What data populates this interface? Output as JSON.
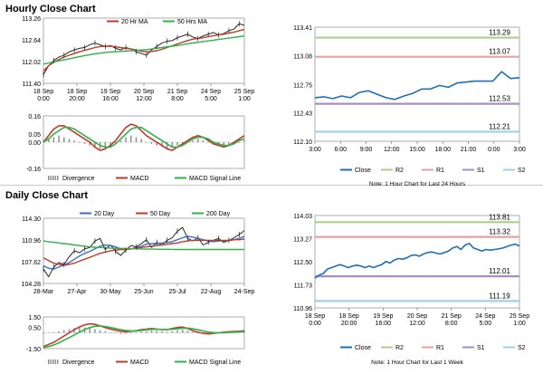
{
  "sections": {
    "hourly_title": "Hourly Close Chart",
    "daily_title": "Daily Close Chart"
  },
  "colors": {
    "price": "#111111",
    "ma_short": "#c0392b",
    "ma_long": "#2db34a",
    "ma_mid": "#3b6fc4",
    "close": "#1f6fb2",
    "r2": "#a8d08d",
    "r1": "#e8a0a0",
    "s1": "#a78fc0",
    "s2": "#9dd0e8",
    "divergence": "#888888",
    "macd": "#c0392b",
    "signal": "#2db34a"
  },
  "chart_data": [
    {
      "id": "hourly_price",
      "type": "line",
      "ylim": [
        111.4,
        113.26
      ],
      "yticks": [
        "113.26",
        "112.64",
        "112.02",
        "111.40"
      ],
      "xticks": [
        "18 Sep\n0:00",
        "18 Sep\n20:00",
        "19 Sep\n16:00",
        "20 Sep\n12:00",
        "21 Sep\n8:00",
        "24 Sep\n5:00",
        "25 Sep\n1:00"
      ],
      "legend": [
        "20 Hr MA",
        "50 Hrs MA"
      ],
      "series": [
        {
          "name": "Price",
          "values": [
            111.65,
            111.9,
            112.05,
            112.15,
            112.2,
            112.3,
            112.35,
            112.4,
            112.42,
            112.5,
            112.55,
            112.5,
            112.45,
            112.48,
            112.4,
            112.35,
            112.42,
            112.38,
            112.3,
            112.25,
            112.2,
            112.35,
            112.45,
            112.55,
            112.6,
            112.62,
            112.7,
            112.75,
            112.8,
            112.72,
            112.68,
            112.75,
            112.8,
            112.85,
            112.78,
            112.82,
            112.9,
            112.95,
            113.1,
            113.05
          ]
        },
        {
          "name": "20 Hr MA",
          "values": [
            111.75,
            111.9,
            112.0,
            112.08,
            112.15,
            112.2,
            112.25,
            112.3,
            112.34,
            112.38,
            112.42,
            112.45,
            112.46,
            112.46,
            112.44,
            112.42,
            112.4,
            112.38,
            112.35,
            112.32,
            112.3,
            112.31,
            112.33,
            112.37,
            112.42,
            112.47,
            112.52,
            112.57,
            112.62,
            112.66,
            112.68,
            112.7,
            112.73,
            112.76,
            112.78,
            112.8,
            112.83,
            112.86,
            112.9,
            112.94
          ]
        },
        {
          "name": "50 Hrs MA",
          "values": [
            111.95,
            111.98,
            112.01,
            112.04,
            112.07,
            112.1,
            112.13,
            112.16,
            112.19,
            112.22,
            112.24,
            112.26,
            112.28,
            112.29,
            112.3,
            112.31,
            112.32,
            112.33,
            112.34,
            112.35,
            112.36,
            112.38,
            112.4,
            112.42,
            112.44,
            112.46,
            112.48,
            112.5,
            112.53,
            112.55,
            112.57,
            112.59,
            112.61,
            112.63,
            112.65,
            112.67,
            112.69,
            112.71,
            112.73,
            112.75
          ]
        }
      ]
    },
    {
      "id": "hourly_macd",
      "type": "line",
      "ylim": [
        -0.16,
        0.16
      ],
      "yticks": [
        "0.16",
        "0.05",
        "0.00",
        "-0.16"
      ],
      "legend": [
        "Divergence",
        "MACD",
        "MACD Signal Line"
      ],
      "divergence": [
        0.01,
        0.02,
        0.03,
        0.04,
        0.03,
        0.02,
        0.01,
        0.0,
        -0.01,
        -0.02,
        -0.03,
        -0.04,
        -0.03,
        -0.02,
        -0.01,
        0.01,
        0.03,
        0.04,
        0.03,
        0.02,
        0.0,
        -0.01,
        -0.02,
        -0.03,
        -0.04,
        -0.03,
        -0.02,
        -0.01,
        0.0,
        0.01,
        0.02,
        0.01,
        0.0,
        -0.01,
        -0.02,
        -0.03,
        -0.02,
        -0.01,
        0.0,
        0.01
      ],
      "series": [
        {
          "name": "MACD",
          "values": [
            0.0,
            0.04,
            0.08,
            0.1,
            0.1,
            0.08,
            0.06,
            0.04,
            0.02,
            0.0,
            -0.03,
            -0.05,
            -0.04,
            -0.02,
            0.01,
            0.05,
            0.09,
            0.11,
            0.1,
            0.07,
            0.04,
            0.02,
            0.0,
            -0.02,
            -0.04,
            -0.05,
            -0.03,
            -0.01,
            0.01,
            0.03,
            0.04,
            0.03,
            0.01,
            -0.01,
            -0.02,
            -0.03,
            -0.02,
            0.0,
            0.02,
            0.04
          ]
        },
        {
          "name": "MACD Signal Line",
          "values": [
            0.0,
            0.02,
            0.05,
            0.07,
            0.09,
            0.09,
            0.08,
            0.06,
            0.04,
            0.02,
            0.0,
            -0.02,
            -0.03,
            -0.03,
            -0.01,
            0.02,
            0.05,
            0.08,
            0.09,
            0.09,
            0.07,
            0.05,
            0.03,
            0.01,
            -0.01,
            -0.03,
            -0.03,
            -0.02,
            0.0,
            0.02,
            0.03,
            0.03,
            0.02,
            0.0,
            -0.01,
            -0.02,
            -0.02,
            -0.01,
            0.01,
            0.02
          ]
        }
      ]
    },
    {
      "id": "hourly_levels",
      "type": "line",
      "ylim": [
        112.1,
        113.41
      ],
      "yticks": [
        "113.41",
        "113.08",
        "112.75",
        "112.43",
        "112.10"
      ],
      "xticks": [
        "3:00",
        "6:00",
        "9:00",
        "12:00",
        "15:00",
        "18:00",
        "21:00",
        "0:00",
        "3:00"
      ],
      "levels": [
        {
          "name": "R2",
          "value": 113.29,
          "label": "113.29"
        },
        {
          "name": "R1",
          "value": 113.07,
          "label": "113.07"
        },
        {
          "name": "S1",
          "value": 112.53,
          "label": "112.53"
        },
        {
          "name": "S2",
          "value": 112.21,
          "label": "112.21"
        }
      ],
      "series": [
        {
          "name": "Close",
          "values": [
            112.6,
            112.61,
            112.59,
            112.62,
            112.6,
            112.66,
            112.68,
            112.64,
            112.6,
            112.58,
            112.62,
            112.65,
            112.7,
            112.7,
            112.74,
            112.72,
            112.77,
            112.78,
            112.79,
            112.79,
            112.79,
            112.9,
            112.82,
            112.83
          ]
        }
      ],
      "legend": [
        "Close",
        "R2",
        "R1",
        "S1",
        "S2"
      ],
      "note": "Note: 1 Hour Chart for Last 24 Hours"
    },
    {
      "id": "daily_price",
      "type": "line",
      "ylim": [
        104.28,
        114.3
      ],
      "yticks": [
        "114.30",
        "110.96",
        "107.62",
        "104.28"
      ],
      "xticks": [
        "28-Mar",
        "27-Apr",
        "30-May",
        "25-Jun",
        "25-Jul",
        "22-Aug",
        "24-Sep"
      ],
      "legend": [
        "20 Day",
        "50 Day",
        "200 Day"
      ],
      "series": [
        {
          "name": "Price",
          "values": [
            106.5,
            105.3,
            106.8,
            107.5,
            107.2,
            108.4,
            109.3,
            109.0,
            109.6,
            109.8,
            110.8,
            111.2,
            109.5,
            110.2,
            109.2,
            108.6,
            109.4,
            110.1,
            109.9,
            110.4,
            111.0,
            109.8,
            110.6,
            110.2,
            110.9,
            111.3,
            112.3,
            112.9,
            111.2,
            110.8,
            111.3,
            110.2,
            110.6,
            110.9,
            111.2,
            110.6,
            110.9,
            111.3,
            111.8,
            112.4
          ]
        },
        {
          "name": "20 Day",
          "values": [
            107.0,
            106.6,
            106.5,
            106.8,
            107.1,
            107.5,
            108.0,
            108.5,
            108.9,
            109.2,
            109.6,
            110.0,
            110.2,
            110.1,
            109.9,
            109.6,
            109.5,
            109.6,
            109.8,
            110.0,
            110.3,
            110.4,
            110.4,
            110.5,
            110.6,
            110.7,
            111.0,
            111.3,
            111.5,
            111.4,
            111.2,
            111.0,
            110.8,
            110.7,
            110.8,
            110.8,
            110.9,
            111.0,
            111.2,
            111.5
          ]
        },
        {
          "name": "50 Day",
          "values": [
            108.2,
            107.8,
            107.4,
            107.2,
            107.1,
            107.2,
            107.4,
            107.7,
            108.0,
            108.3,
            108.6,
            108.9,
            109.1,
            109.3,
            109.4,
            109.5,
            109.5,
            109.6,
            109.7,
            109.8,
            109.9,
            110.0,
            110.1,
            110.2,
            110.3,
            110.4,
            110.5,
            110.7,
            110.8,
            110.9,
            110.9,
            110.9,
            110.9,
            110.9,
            110.9,
            110.9,
            110.9,
            111.0,
            111.0,
            111.1
          ]
        },
        {
          "name": "200 Day",
          "values": [
            110.8,
            110.7,
            110.6,
            110.5,
            110.4,
            110.3,
            110.2,
            110.1,
            110.0,
            109.9,
            109.85,
            109.8,
            109.75,
            109.7,
            109.68,
            109.66,
            109.64,
            109.62,
            109.6,
            109.58,
            109.56,
            109.55,
            109.54,
            109.53,
            109.52,
            109.51,
            109.5,
            109.5,
            109.5,
            109.5,
            109.5,
            109.5,
            109.5,
            109.5,
            109.5,
            109.5,
            109.5,
            109.5,
            109.5,
            109.5
          ]
        }
      ]
    },
    {
      "id": "daily_macd",
      "type": "line",
      "ylim": [
        -1.5,
        1.5
      ],
      "yticks": [
        "1.50",
        "0.50",
        "-1.50"
      ],
      "legend": [
        "Divergence",
        "MACD",
        "MACD Signal Line"
      ],
      "divergence": [
        -0.1,
        -0.05,
        0.05,
        0.15,
        0.25,
        0.35,
        0.45,
        0.5,
        0.5,
        0.45,
        0.35,
        0.25,
        0.15,
        0.05,
        -0.05,
        -0.1,
        -0.1,
        0.0,
        0.05,
        0.1,
        0.15,
        0.2,
        0.2,
        0.15,
        0.1,
        0.15,
        0.25,
        0.3,
        0.2,
        0.1,
        0.0,
        -0.1,
        -0.15,
        -0.1,
        -0.05,
        0.0,
        0.05,
        0.05,
        0.1,
        0.15
      ],
      "series": [
        {
          "name": "MACD",
          "values": [
            -1.3,
            -1.1,
            -0.9,
            -0.6,
            -0.3,
            0.0,
            0.3,
            0.55,
            0.75,
            0.85,
            0.8,
            0.65,
            0.5,
            0.35,
            0.25,
            0.15,
            0.1,
            0.15,
            0.2,
            0.3,
            0.35,
            0.4,
            0.35,
            0.3,
            0.3,
            0.4,
            0.5,
            0.55,
            0.4,
            0.2,
            0.05,
            -0.05,
            -0.1,
            -0.05,
            0.0,
            0.05,
            0.1,
            0.12,
            0.15,
            0.2
          ]
        },
        {
          "name": "MACD Signal Line",
          "values": [
            -1.4,
            -1.3,
            -1.15,
            -0.95,
            -0.7,
            -0.45,
            -0.2,
            0.05,
            0.3,
            0.5,
            0.62,
            0.65,
            0.6,
            0.5,
            0.4,
            0.3,
            0.22,
            0.18,
            0.18,
            0.22,
            0.28,
            0.32,
            0.33,
            0.32,
            0.31,
            0.33,
            0.38,
            0.44,
            0.45,
            0.38,
            0.28,
            0.17,
            0.07,
            0.02,
            0.0,
            0.0,
            0.03,
            0.06,
            0.09,
            0.12
          ]
        }
      ]
    },
    {
      "id": "daily_levels",
      "type": "line",
      "ylim": [
        110.96,
        114.03
      ],
      "yticks": [
        "114.03",
        "113.27",
        "112.50",
        "111.73",
        "110.96"
      ],
      "xticks": [
        "18 Sep\n0:00",
        "18 Sep\n20:00",
        "19 Sep\n16:00",
        "20 Sep\n12:00",
        "21 Sep\n8:00",
        "24 Sep\n5:00",
        "25 Sep\n1:00"
      ],
      "levels": [
        {
          "name": "R2",
          "value": 113.81,
          "label": "113.81"
        },
        {
          "name": "R1",
          "value": 113.32,
          "label": "113.32"
        },
        {
          "name": "S1",
          "value": 112.01,
          "label": "112.01"
        },
        {
          "name": "S2",
          "value": 111.19,
          "label": "111.19"
        }
      ],
      "series": [
        {
          "name": "Close",
          "values": [
            111.95,
            112.05,
            112.1,
            112.25,
            112.3,
            112.35,
            112.4,
            112.35,
            112.3,
            112.35,
            112.38,
            112.35,
            112.3,
            112.35,
            112.3,
            112.35,
            112.4,
            112.5,
            112.45,
            112.55,
            112.6,
            112.58,
            112.62,
            112.7,
            112.72,
            112.68,
            112.75,
            112.8,
            112.82,
            112.78,
            112.75,
            112.8,
            112.85,
            112.95,
            113.0,
            112.9,
            113.05,
            113.1,
            112.95,
            112.9,
            112.85,
            112.9,
            112.88,
            112.9,
            112.92,
            112.95,
            113.0,
            113.05,
            113.08,
            113.02
          ]
        }
      ],
      "legend": [
        "Close",
        "R2",
        "R1",
        "S1",
        "S2"
      ],
      "note": "Note: 1 Hour Chart for Last 1 Week"
    }
  ]
}
